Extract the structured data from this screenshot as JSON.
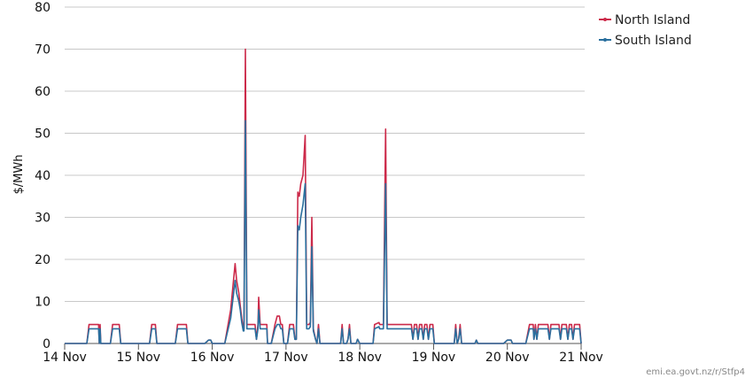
{
  "chart_data": {
    "type": "line",
    "title": "",
    "xlabel": "",
    "ylabel": "$/MWh",
    "ylim": [
      0,
      80
    ],
    "yticks": [
      "0",
      "10",
      "20",
      "30",
      "40",
      "50",
      "60",
      "70",
      "80"
    ],
    "xlim": [
      14,
      21
    ],
    "xticks": [
      {
        "x": 14,
        "label": "14 Nov"
      },
      {
        "x": 15,
        "label": "15 Nov"
      },
      {
        "x": 16,
        "label": "16 Nov"
      },
      {
        "x": 17,
        "label": "17 Nov"
      },
      {
        "x": 18,
        "label": "18 Nov"
      },
      {
        "x": 19,
        "label": "19 Nov"
      },
      {
        "x": 20,
        "label": "20 Nov"
      },
      {
        "x": 21,
        "label": "21 Nov"
      }
    ],
    "grid": true,
    "legend_position": "top-right",
    "series": [
      {
        "name": "North Island",
        "color": "#cc2a4a",
        "points": [
          [
            14.0,
            0
          ],
          [
            14.3,
            0
          ],
          [
            14.33,
            4.5
          ],
          [
            14.46,
            4.5
          ],
          [
            14.47,
            0
          ],
          [
            14.48,
            4.5
          ],
          [
            14.49,
            0
          ],
          [
            14.55,
            0
          ],
          [
            14.62,
            0
          ],
          [
            14.65,
            4.5
          ],
          [
            14.74,
            4.5
          ],
          [
            14.76,
            0
          ],
          [
            15.12,
            0
          ],
          [
            15.15,
            0
          ],
          [
            15.18,
            4.5
          ],
          [
            15.23,
            4.5
          ],
          [
            15.25,
            0
          ],
          [
            15.5,
            0
          ],
          [
            15.53,
            4.5
          ],
          [
            15.65,
            4.5
          ],
          [
            15.67,
            0
          ],
          [
            15.9,
            0
          ],
          [
            15.95,
            0.8
          ],
          [
            15.98,
            0.8
          ],
          [
            16.0,
            0
          ],
          [
            16.05,
            0
          ],
          [
            16.17,
            0
          ],
          [
            16.25,
            8
          ],
          [
            16.31,
            19
          ],
          [
            16.33,
            15
          ],
          [
            16.36,
            12
          ],
          [
            16.38,
            9
          ],
          [
            16.4,
            6
          ],
          [
            16.42,
            3.5
          ],
          [
            16.43,
            3.5
          ],
          [
            16.45,
            70
          ],
          [
            16.47,
            4.5
          ],
          [
            16.55,
            4.5
          ],
          [
            16.58,
            4.5
          ],
          [
            16.6,
            1
          ],
          [
            16.62,
            4.5
          ],
          [
            16.63,
            11
          ],
          [
            16.65,
            4.5
          ],
          [
            16.68,
            4.5
          ],
          [
            16.72,
            4.5
          ],
          [
            16.74,
            4.5
          ],
          [
            16.75,
            0
          ],
          [
            16.8,
            0
          ],
          [
            16.85,
            4.5
          ],
          [
            16.88,
            6.5
          ],
          [
            16.91,
            6.5
          ],
          [
            16.93,
            4.5
          ],
          [
            16.95,
            4.5
          ],
          [
            16.97,
            0
          ],
          [
            17.02,
            0
          ],
          [
            17.05,
            4.5
          ],
          [
            17.1,
            4.5
          ],
          [
            17.12,
            1
          ],
          [
            17.14,
            1
          ],
          [
            17.16,
            36
          ],
          [
            17.18,
            35
          ],
          [
            17.2,
            38
          ],
          [
            17.23,
            40
          ],
          [
            17.26,
            49.5
          ],
          [
            17.28,
            4.5
          ],
          [
            17.31,
            4.5
          ],
          [
            17.33,
            5
          ],
          [
            17.35,
            30
          ],
          [
            17.37,
            3.5
          ],
          [
            17.4,
            1
          ],
          [
            17.42,
            0
          ],
          [
            17.44,
            4.5
          ],
          [
            17.46,
            0
          ],
          [
            17.5,
            0
          ],
          [
            17.7,
            0
          ],
          [
            17.74,
            0
          ],
          [
            17.76,
            4.5
          ],
          [
            17.78,
            0
          ],
          [
            17.82,
            0
          ],
          [
            17.84,
            1
          ],
          [
            17.86,
            4.5
          ],
          [
            17.88,
            0
          ],
          [
            17.95,
            0
          ],
          [
            17.97,
            1
          ],
          [
            18.0,
            0
          ],
          [
            18.1,
            0
          ],
          [
            18.18,
            0
          ],
          [
            18.2,
            4.5
          ],
          [
            18.26,
            5
          ],
          [
            18.27,
            4.5
          ],
          [
            18.3,
            4.5
          ],
          [
            18.32,
            4.5
          ],
          [
            18.35,
            51
          ],
          [
            18.37,
            4.5
          ],
          [
            18.45,
            4.5
          ],
          [
            18.65,
            4.5
          ],
          [
            18.7,
            4.5
          ],
          [
            18.72,
            1
          ],
          [
            18.74,
            4.5
          ],
          [
            18.77,
            4.5
          ],
          [
            18.79,
            1
          ],
          [
            18.81,
            4.5
          ],
          [
            18.84,
            4.5
          ],
          [
            18.86,
            1
          ],
          [
            18.88,
            4.5
          ],
          [
            18.91,
            4.5
          ],
          [
            18.93,
            1
          ],
          [
            18.95,
            4.5
          ],
          [
            18.99,
            4.5
          ],
          [
            19.01,
            0
          ],
          [
            19.05,
            0
          ],
          [
            19.15,
            0
          ],
          [
            19.28,
            0
          ],
          [
            19.3,
            4.5
          ],
          [
            19.32,
            0
          ],
          [
            19.34,
            1
          ],
          [
            19.36,
            4.5
          ],
          [
            19.38,
            0
          ],
          [
            19.42,
            0
          ],
          [
            19.5,
            0
          ],
          [
            19.56,
            0
          ],
          [
            19.58,
            0.8
          ],
          [
            19.6,
            0
          ],
          [
            19.7,
            0
          ],
          [
            19.95,
            0
          ],
          [
            20.0,
            0.8
          ],
          [
            20.05,
            0.8
          ],
          [
            20.07,
            0
          ],
          [
            20.2,
            0
          ],
          [
            20.25,
            0
          ],
          [
            20.3,
            4.5
          ],
          [
            20.35,
            4.5
          ],
          [
            20.36,
            1
          ],
          [
            20.38,
            4.5
          ],
          [
            20.4,
            1
          ],
          [
            20.42,
            4.5
          ],
          [
            20.55,
            4.5
          ],
          [
            20.57,
            1
          ],
          [
            20.59,
            4.5
          ],
          [
            20.7,
            4.5
          ],
          [
            20.72,
            1
          ],
          [
            20.74,
            4.5
          ],
          [
            20.8,
            4.5
          ],
          [
            20.82,
            1
          ],
          [
            20.84,
            4.5
          ],
          [
            20.87,
            4.5
          ],
          [
            20.89,
            1
          ],
          [
            20.91,
            4.5
          ],
          [
            20.98,
            4.5
          ],
          [
            21.0,
            0
          ]
        ]
      },
      {
        "name": "South Island",
        "color": "#2a6f9e",
        "points": [
          [
            14.0,
            0
          ],
          [
            14.3,
            0
          ],
          [
            14.33,
            3.5
          ],
          [
            14.46,
            3.5
          ],
          [
            14.47,
            0
          ],
          [
            14.48,
            3.5
          ],
          [
            14.49,
            0
          ],
          [
            14.55,
            0
          ],
          [
            14.62,
            0
          ],
          [
            14.65,
            3.5
          ],
          [
            14.74,
            3.5
          ],
          [
            14.76,
            0
          ],
          [
            15.12,
            0
          ],
          [
            15.15,
            0
          ],
          [
            15.18,
            3.5
          ],
          [
            15.23,
            3.5
          ],
          [
            15.25,
            0
          ],
          [
            15.5,
            0
          ],
          [
            15.53,
            3.5
          ],
          [
            15.65,
            3.5
          ],
          [
            15.67,
            0
          ],
          [
            15.9,
            0
          ],
          [
            15.95,
            0.8
          ],
          [
            15.98,
            0.8
          ],
          [
            16.0,
            0
          ],
          [
            16.05,
            0
          ],
          [
            16.17,
            0
          ],
          [
            16.25,
            6
          ],
          [
            16.31,
            15
          ],
          [
            16.33,
            12
          ],
          [
            16.36,
            10
          ],
          [
            16.38,
            8
          ],
          [
            16.4,
            5
          ],
          [
            16.42,
            3
          ],
          [
            16.43,
            3
          ],
          [
            16.45,
            53
          ],
          [
            16.47,
            3.5
          ],
          [
            16.55,
            3.5
          ],
          [
            16.58,
            3.5
          ],
          [
            16.6,
            1
          ],
          [
            16.62,
            3.5
          ],
          [
            16.63,
            8
          ],
          [
            16.65,
            3.5
          ],
          [
            16.68,
            3.5
          ],
          [
            16.72,
            3.5
          ],
          [
            16.74,
            3.5
          ],
          [
            16.75,
            0
          ],
          [
            16.8,
            0
          ],
          [
            16.85,
            3.5
          ],
          [
            16.88,
            4.5
          ],
          [
            16.91,
            4.5
          ],
          [
            16.93,
            3.5
          ],
          [
            16.95,
            3.5
          ],
          [
            16.97,
            0
          ],
          [
            17.02,
            0
          ],
          [
            17.05,
            3.5
          ],
          [
            17.1,
            3.5
          ],
          [
            17.12,
            1
          ],
          [
            17.14,
            1
          ],
          [
            17.16,
            28
          ],
          [
            17.18,
            27
          ],
          [
            17.2,
            30
          ],
          [
            17.23,
            33
          ],
          [
            17.26,
            38
          ],
          [
            17.28,
            3.5
          ],
          [
            17.31,
            3.5
          ],
          [
            17.33,
            4
          ],
          [
            17.35,
            23
          ],
          [
            17.37,
            3
          ],
          [
            17.4,
            1
          ],
          [
            17.42,
            0
          ],
          [
            17.44,
            3.5
          ],
          [
            17.46,
            0
          ],
          [
            17.5,
            0
          ],
          [
            17.7,
            0
          ],
          [
            17.74,
            0
          ],
          [
            17.76,
            3.5
          ],
          [
            17.78,
            0
          ],
          [
            17.82,
            0
          ],
          [
            17.84,
            1
          ],
          [
            17.86,
            3.5
          ],
          [
            17.88,
            0
          ],
          [
            17.95,
            0
          ],
          [
            17.97,
            1
          ],
          [
            18.0,
            0
          ],
          [
            18.1,
            0
          ],
          [
            18.18,
            0
          ],
          [
            18.2,
            3.5
          ],
          [
            18.26,
            4
          ],
          [
            18.27,
            3.5
          ],
          [
            18.3,
            3.5
          ],
          [
            18.32,
            3.5
          ],
          [
            18.35,
            38
          ],
          [
            18.37,
            3.5
          ],
          [
            18.45,
            3.5
          ],
          [
            18.65,
            3.5
          ],
          [
            18.7,
            3.5
          ],
          [
            18.72,
            1
          ],
          [
            18.74,
            3.5
          ],
          [
            18.77,
            3.5
          ],
          [
            18.79,
            1
          ],
          [
            18.81,
            3.5
          ],
          [
            18.84,
            3.5
          ],
          [
            18.86,
            1
          ],
          [
            18.88,
            3.5
          ],
          [
            18.91,
            3.5
          ],
          [
            18.93,
            1
          ],
          [
            18.95,
            3.5
          ],
          [
            18.99,
            3.5
          ],
          [
            19.01,
            0
          ],
          [
            19.05,
            0
          ],
          [
            19.15,
            0
          ],
          [
            19.28,
            0
          ],
          [
            19.3,
            3.5
          ],
          [
            19.32,
            0
          ],
          [
            19.34,
            1
          ],
          [
            19.36,
            3.5
          ],
          [
            19.38,
            0
          ],
          [
            19.42,
            0
          ],
          [
            19.5,
            0
          ],
          [
            19.56,
            0
          ],
          [
            19.58,
            0.8
          ],
          [
            19.6,
            0
          ],
          [
            19.7,
            0
          ],
          [
            19.95,
            0
          ],
          [
            20.0,
            0.8
          ],
          [
            20.05,
            0.8
          ],
          [
            20.07,
            0
          ],
          [
            20.2,
            0
          ],
          [
            20.25,
            0
          ],
          [
            20.3,
            3.5
          ],
          [
            20.35,
            3.5
          ],
          [
            20.36,
            1
          ],
          [
            20.38,
            3.5
          ],
          [
            20.4,
            1
          ],
          [
            20.42,
            3.5
          ],
          [
            20.55,
            3.5
          ],
          [
            20.57,
            1
          ],
          [
            20.59,
            3.5
          ],
          [
            20.7,
            3.5
          ],
          [
            20.72,
            1
          ],
          [
            20.74,
            3.5
          ],
          [
            20.8,
            3.5
          ],
          [
            20.82,
            1
          ],
          [
            20.84,
            3.5
          ],
          [
            20.87,
            3.5
          ],
          [
            20.89,
            1
          ],
          [
            20.91,
            3.5
          ],
          [
            20.98,
            3.5
          ],
          [
            21.0,
            0
          ]
        ]
      }
    ]
  },
  "source_text": "emi.ea.govt.nz/r/Stfp4"
}
